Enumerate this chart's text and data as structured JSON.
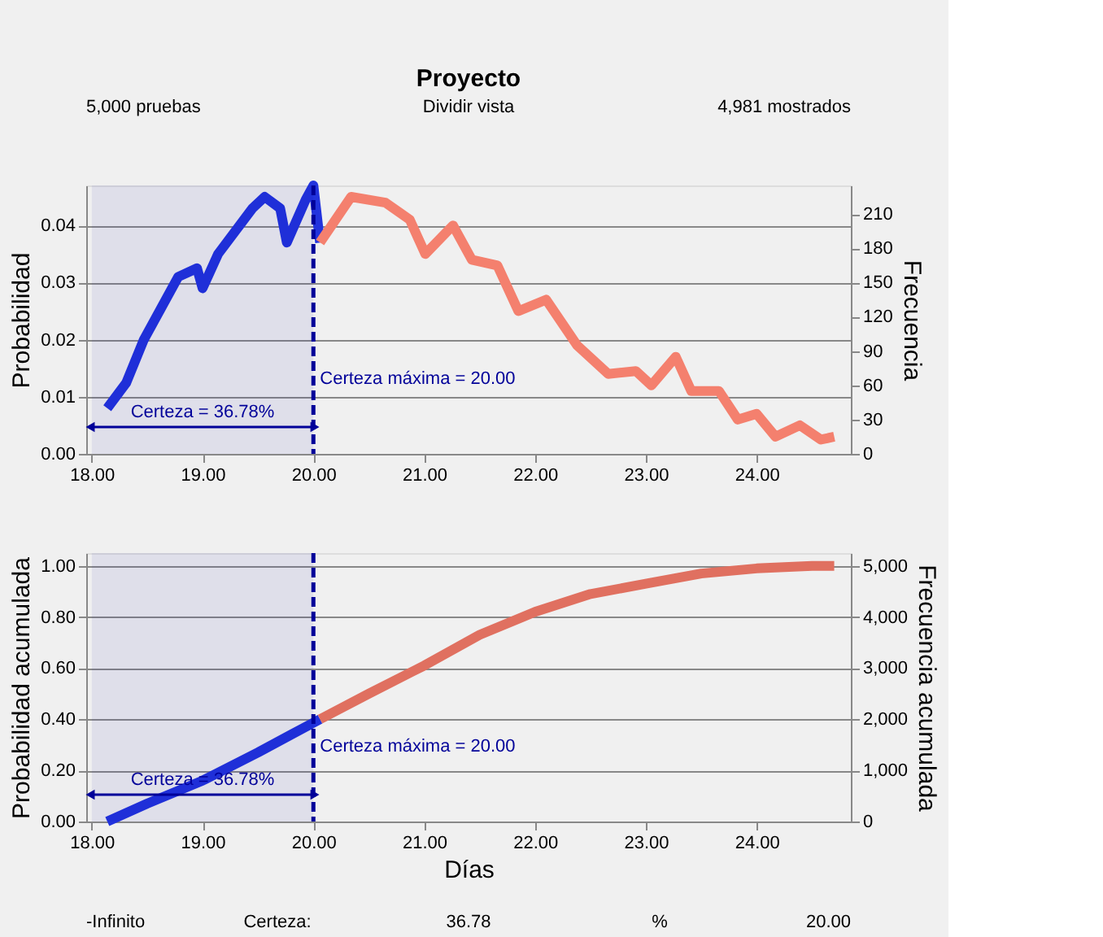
{
  "chart_data": [
    {
      "type": "line",
      "title": "Proyecto",
      "ylabel": "Probabilidad",
      "y2label": "Frecuencia",
      "xlim": [
        17.95,
        24.85
      ],
      "xticks": [
        {
          "value": 18,
          "label": "18.00"
        },
        {
          "value": 19,
          "label": "19.00"
        },
        {
          "value": 20,
          "label": "20.00"
        },
        {
          "value": 21,
          "label": "21.00"
        },
        {
          "value": 22,
          "label": "22.00"
        },
        {
          "value": 23,
          "label": "23.00"
        },
        {
          "value": 24,
          "label": "24.00"
        }
      ],
      "ylim": [
        0,
        0.047
      ],
      "yticks": [
        {
          "value": 0,
          "label": "0.00"
        },
        {
          "value": 0.01,
          "label": "0.01"
        },
        {
          "value": 0.02,
          "label": "0.02"
        },
        {
          "value": 0.03,
          "label": "0.03"
        },
        {
          "value": 0.04,
          "label": "0.04"
        }
      ],
      "y2lim": [
        0,
        235
      ],
      "y2ticks": [
        0,
        30,
        60,
        90,
        120,
        150,
        180,
        210
      ],
      "grid": "y",
      "marker": "none",
      "series": [
        {
          "color": "#2233dd",
          "x": [
            18.14,
            18.31,
            18.47,
            18.78,
            18.95,
            19.0,
            19.14,
            19.45,
            19.56,
            19.7,
            19.76,
            19.93,
            20.0,
            20.06
          ],
          "values": [
            0.008,
            0.0124,
            0.02,
            0.031,
            0.0325,
            0.029,
            0.035,
            0.043,
            0.045,
            0.043,
            0.037,
            0.0445,
            0.047,
            0.037
          ]
        },
        {
          "color": "#f4806e",
          "x": [
            20.06,
            20.34,
            20.65,
            20.87,
            21.01,
            21.26,
            21.43,
            21.66,
            21.85,
            22.1,
            22.38,
            22.66,
            22.91,
            23.05,
            23.27,
            23.41,
            23.66,
            23.83,
            24.0,
            24.17,
            24.39,
            24.58,
            24.7
          ],
          "values": [
            0.037,
            0.045,
            0.044,
            0.041,
            0.035,
            0.04,
            0.034,
            0.033,
            0.025,
            0.027,
            0.019,
            0.014,
            0.0145,
            0.012,
            0.017,
            0.011,
            0.011,
            0.006,
            0.007,
            0.003,
            0.005,
            0.0025,
            0.003
          ]
        }
      ],
      "ref_lines": [
        {
          "axis": "x",
          "value": 20,
          "label": "Certeza máxima = 20.00",
          "color": "#000099",
          "line_style": "dashed"
        }
      ],
      "bands": [
        {
          "axis": "x",
          "from": 18.0,
          "to": 20.0,
          "label": "Certeza = 36.78%",
          "color": "#000099"
        }
      ],
      "annotations": [
        "5,000 pruebas",
        "Dividir vista",
        "4,981 mostrados"
      ]
    },
    {
      "type": "line",
      "xlabel": "Días",
      "ylabel": "Probabilidad acumulada",
      "y2label": "Frecuencia acumulada",
      "xlim": [
        17.95,
        24.85
      ],
      "xticks": [
        {
          "value": 18,
          "label": "18.00"
        },
        {
          "value": 19,
          "label": "19.00"
        },
        {
          "value": 20,
          "label": "20.00"
        },
        {
          "value": 21,
          "label": "21.00"
        },
        {
          "value": 22,
          "label": "22.00"
        },
        {
          "value": 23,
          "label": "23.00"
        },
        {
          "value": 24,
          "label": "24.00"
        }
      ],
      "ylim": [
        0,
        1.05
      ],
      "yticks": [
        {
          "value": 0,
          "label": "0.00"
        },
        {
          "value": 0.2,
          "label": "0.20"
        },
        {
          "value": 0.4,
          "label": "0.40"
        },
        {
          "value": 0.6,
          "label": "0.60"
        },
        {
          "value": 0.8,
          "label": "0.80"
        },
        {
          "value": 1,
          "label": "1.00"
        }
      ],
      "y2lim": [
        0,
        5250
      ],
      "y2ticks": [
        {
          "value": 0,
          "label": "0"
        },
        {
          "value": 1000,
          "label": "1,000"
        },
        {
          "value": 2000,
          "label": "2,000"
        },
        {
          "value": 3000,
          "label": "3,000"
        },
        {
          "value": 4000,
          "label": "4,000"
        },
        {
          "value": 5000,
          "label": "5,000"
        }
      ],
      "grid": "y",
      "marker": "none",
      "series": [
        {
          "color": "#2233dd",
          "x": [
            18.14,
            18.5,
            19.0,
            19.5,
            19.8,
            20.06
          ],
          "values": [
            0,
            0.07,
            0.16,
            0.27,
            0.34,
            0.4
          ]
        },
        {
          "color": "#e07060",
          "x": [
            20.06,
            20.5,
            21.0,
            21.5,
            22.0,
            22.5,
            23.0,
            23.5,
            24.0,
            24.5,
            24.7
          ],
          "values": [
            0.4,
            0.5,
            0.61,
            0.73,
            0.82,
            0.89,
            0.93,
            0.97,
            0.99,
            1.0,
            1.0
          ]
        }
      ],
      "ref_lines": [
        {
          "axis": "x",
          "value": 20,
          "label": "Certeza máxima = 20.00",
          "color": "#000099",
          "line_style": "dashed"
        }
      ],
      "bands": [
        {
          "axis": "x",
          "from": 18.0,
          "to": 20.0,
          "label": "Certeza = 36.78%",
          "color": "#000099"
        }
      ],
      "annotations": [
        "-Infinito",
        "Certeza:",
        "36.78",
        "%",
        "20.00"
      ]
    }
  ]
}
